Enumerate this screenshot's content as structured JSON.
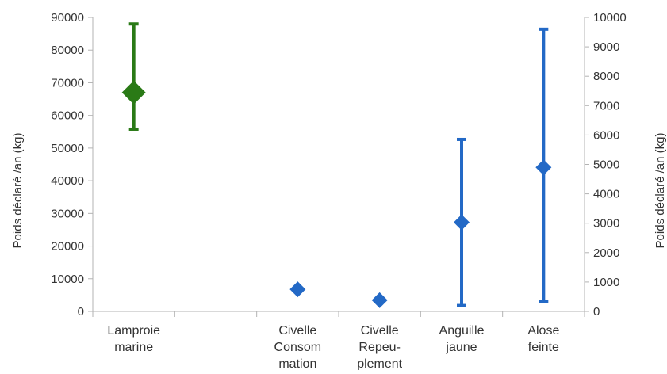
{
  "chart_data": {
    "type": "scatter",
    "title": "",
    "categories": [
      "Lamproie\nmarine",
      "",
      "Civelle\nConsom\nmation",
      "Civelle\nRepeu-\nplement",
      "Anguille\njaune",
      "Alose\nfeinte"
    ],
    "ylabel_left": "Poids déclaré /an (kg)",
    "ylabel_right": "Poids déclaré /an (kg)",
    "y_left": {
      "min": 0,
      "max": 90000,
      "step": 10000,
      "ticks": [
        "0",
        "10000",
        "20000",
        "30000",
        "40000",
        "50000",
        "60000",
        "70000",
        "80000",
        "90000"
      ]
    },
    "y_right": {
      "min": 0,
      "max": 10000,
      "step": 1000,
      "ticks": [
        "0",
        "1000",
        "2000",
        "3000",
        "4000",
        "5000",
        "6000",
        "7000",
        "8000",
        "9000",
        "10000"
      ]
    },
    "grid": false,
    "legend": "none",
    "series": [
      {
        "axis": "left",
        "color": "#2a7a16",
        "marker": "diamond",
        "points": [
          {
            "category": "Lamproie\nmarine",
            "value": 67000,
            "low": 55800,
            "high": 88000
          }
        ]
      },
      {
        "axis": "right",
        "color": "#2369c6",
        "marker": "diamond",
        "points": [
          {
            "category": "Civelle\nConsom\nmation",
            "value": 750
          },
          {
            "category": "Civelle\nRepeu-\nplement",
            "value": 380
          },
          {
            "category": "Anguille\njaune",
            "value": 3030,
            "low": 200,
            "high": 5850
          },
          {
            "category": "Alose\nfeinte",
            "value": 4900,
            "low": 350,
            "high": 9600
          }
        ]
      }
    ]
  }
}
